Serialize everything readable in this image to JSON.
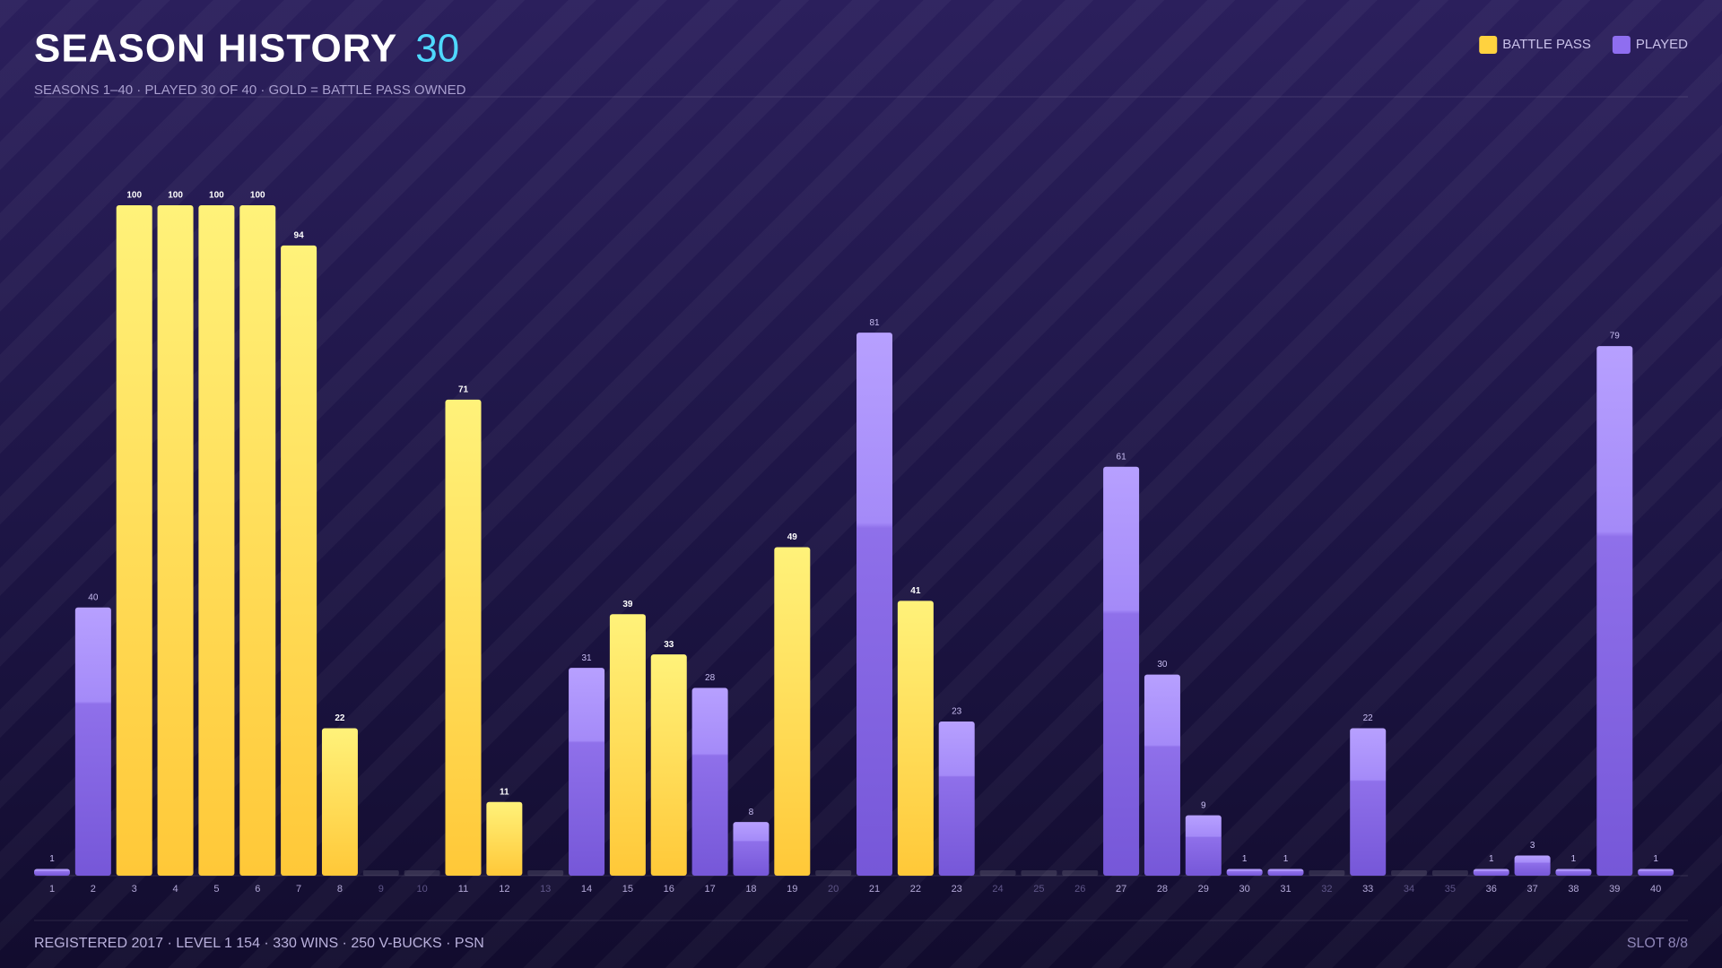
{
  "chart_data": {
    "type": "bar",
    "title": "SEASON HISTORY",
    "title_count": "30",
    "subtitle": "SEASONS 1–40 · PLAYED 30 OF 40 · GOLD = BATTLE PASS OWNED",
    "footer": "REGISTERED 2017 · LEVEL 1 154 · 330 WINS · 250 V-BUCKS · PSN",
    "slot": "SLOT 8/8",
    "legend": "top-right",
    "ylim": [
      0,
      100
    ],
    "categories": [
      "1",
      "2",
      "3",
      "4",
      "5",
      "6",
      "7",
      "8",
      "9",
      "10",
      "11",
      "12",
      "13",
      "14",
      "15",
      "16",
      "17",
      "18",
      "19",
      "20",
      "21",
      "22",
      "23",
      "24",
      "25",
      "26",
      "27",
      "28",
      "29",
      "30",
      "31",
      "32",
      "33",
      "34",
      "35",
      "36",
      "37",
      "38",
      "39",
      "40"
    ],
    "series": [
      {
        "name": "BATTLE PASS",
        "color": "#ffd23f",
        "values": [
          null,
          null,
          100,
          100,
          100,
          100,
          94,
          22,
          null,
          null,
          71,
          11,
          null,
          null,
          39,
          33,
          null,
          null,
          49,
          null,
          null,
          41,
          null,
          null,
          null,
          null,
          null,
          null,
          null,
          null,
          null,
          null,
          null,
          null,
          null,
          null,
          null,
          null,
          null,
          null
        ]
      },
      {
        "name": "PLAYED",
        "color": "#8f6ef0",
        "values": [
          1,
          40,
          null,
          null,
          null,
          null,
          null,
          null,
          null,
          null,
          null,
          null,
          null,
          31,
          null,
          null,
          28,
          8,
          null,
          null,
          81,
          null,
          23,
          null,
          null,
          null,
          61,
          30,
          9,
          1,
          1,
          null,
          22,
          null,
          null,
          1,
          3,
          1,
          79,
          1
        ]
      }
    ]
  }
}
